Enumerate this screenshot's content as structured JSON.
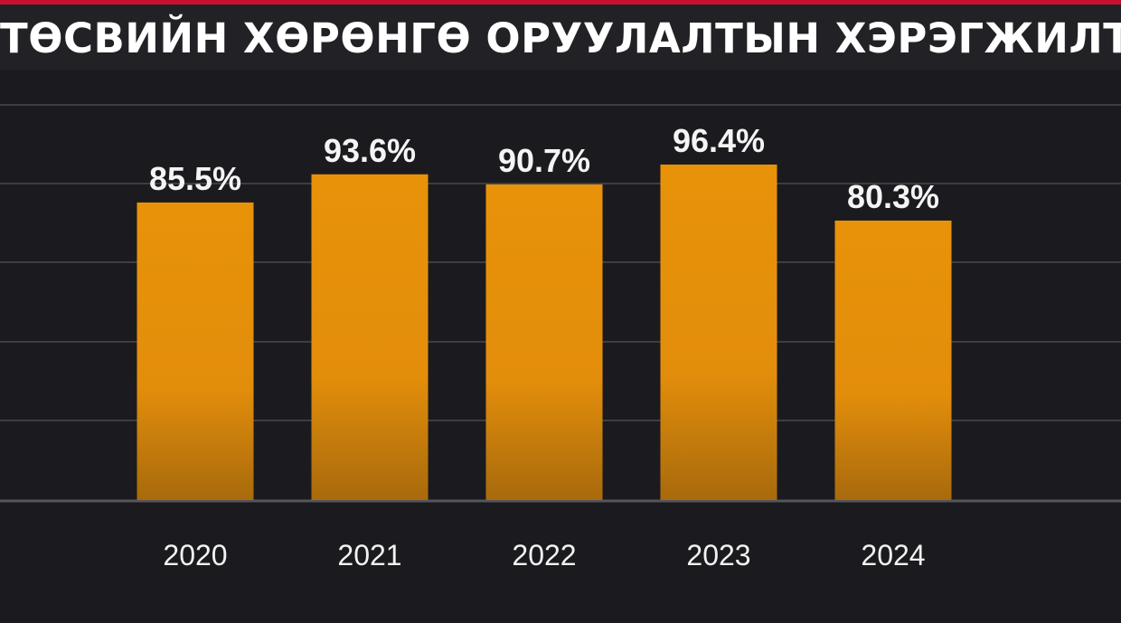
{
  "title": "ТӨСВИЙН ХӨРӨНГӨ ОРУУЛАЛТЫН ХЭРЭГЖИЛТ",
  "colors": {
    "bar": "#e8920a",
    "bar_bottom": "#a86a0c",
    "background": "#1b1b1f",
    "gridline": "#3d3d42",
    "accent_stripe": "#c8102e"
  },
  "chart_data": {
    "type": "bar",
    "categories": [
      "2020",
      "2021",
      "2022",
      "2023",
      "2024"
    ],
    "values": [
      85.5,
      93.6,
      90.7,
      96.4,
      80.3
    ],
    "value_labels": [
      "85.5%",
      "93.6%",
      "90.7%",
      "96.4%",
      "80.3%"
    ],
    "title": "ТӨСВИЙН ХӨРӨНГӨ ОРУУЛАЛТЫН ХЭРЭГЖИЛТ",
    "xlabel": "",
    "ylabel": "",
    "grid": true,
    "legend": "none"
  }
}
